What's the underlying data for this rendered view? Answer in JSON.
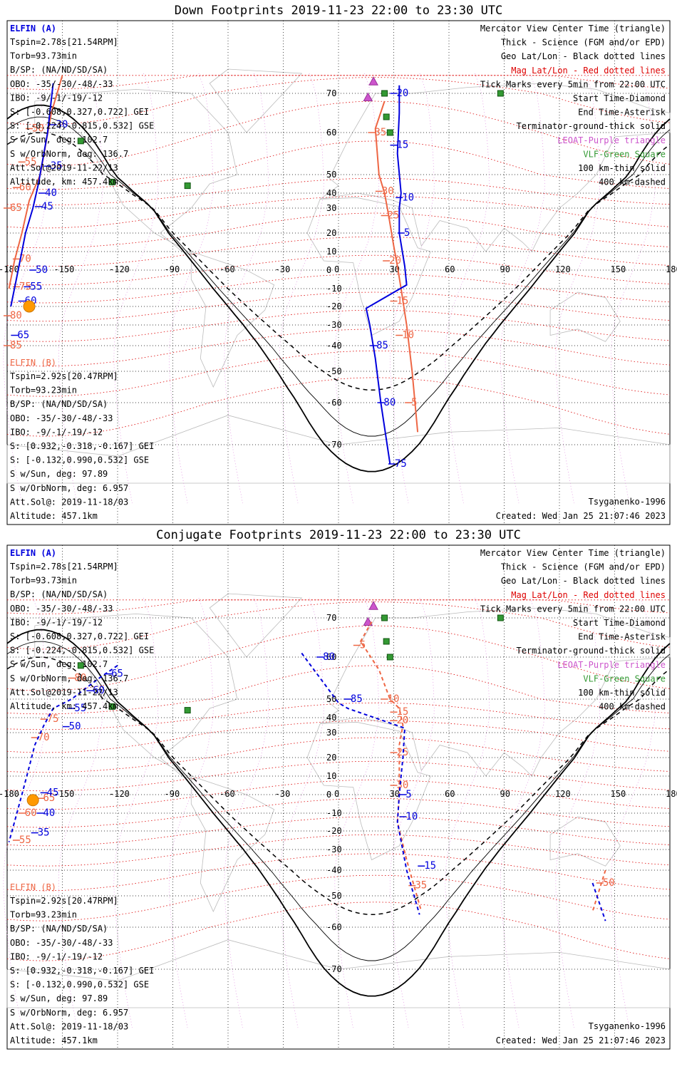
{
  "colors": {
    "elfin_a": "#0000dd",
    "elfin_b": "#ee6644",
    "geo_grid": "#000000",
    "mag_grid": "#dd0000",
    "terminator": "#000000",
    "poes": "#cc55cc",
    "vlf": "#339933",
    "sun": "#ff9900",
    "land": "#bbbbbb"
  },
  "panels": [
    {
      "title": "Down Footprints 2019-11-23 22:00 to 23:30 UTC",
      "legend": [
        "Mercator View Center Time (triangle)",
        "Thick - Science (FGM and/or EPD)",
        "Geo Lat/Lon - Black dotted lines",
        "Mag Lat/Lon - Red dotted lines",
        "Tick Marks every 5min from 22:00 UTC",
        "Start Time-Diamond",
        "End Time-Asterisk",
        "Terminator-ground-thick solid",
        "LEOAT-Purple triangle",
        "VLF-Green Square",
        "100 km-thin solid",
        "400 km-dashed"
      ],
      "elfin_a": {
        "name": "ELFIN (A)",
        "info": [
          "Tspin=2.78s[21.54RPM]",
          "Torb=93.73min",
          "B/SP: (NA/ND/SD/SA)",
          "OBO: -35/-30/-48/-33",
          "IBO: -9/-1/-19/-12",
          "S: [-0.608,0.327,0.722] GEI",
          "S: [-0.224,-0.815,0.532] GSE",
          "S w/Sun, deg: 102.7",
          "S w/OrbNorm, deg: 136.7",
          "Att.Sol@2019-11-22/13",
          "Altitude, km: 457.4km"
        ]
      },
      "elfin_b": {
        "name": "ELFIN (B)",
        "info": [
          "Tspin=2.92s[20.47RPM]",
          "Torb=93.23min",
          "B/SP: (NA/ND/SD/SA)",
          "OBO: -35/-30/-48/-33",
          "IBO: -9/-1/-19/-12",
          "S: [0.932,-0.318,-0.167] GEI",
          "S: [-0.132,0.990,0.532] GSE",
          "S w/Sun, deg: 97.89",
          "S w/OrbNorm, deg: 6.957",
          "Att.Sol@: 2019-11-18/03",
          "Altitude: 457.1km"
        ]
      },
      "model": "Tsyganenko-1996",
      "created": "Created: Wed Jan 25 21:07:46 2023"
    },
    {
      "title": "Conjugate Footprints 2019-11-23 22:00 to 23:30 UTC",
      "legend": [
        "Mercator View Center Time (triangle)",
        "Thick - Science (FGM and/or EPD)",
        "Geo Lat/Lon - Black dotted lines",
        "Mag Lat/Lon - Red dotted lines",
        "Tick Marks every 5min from 22:00 UTC",
        "Start Time-Diamond",
        "End Time-Asterisk",
        "Terminator-ground-thick solid",
        "LEOAT-Purple triangle",
        "VLF-Green Square",
        "100 km-thin solid",
        "400 km-dashed"
      ],
      "elfin_a": {
        "name": "ELFIN (A)",
        "info": [
          "Tspin=2.78s[21.54RPM]",
          "Torb=93.73min",
          "B/SP: (NA/ND/SD/SA)",
          "OBO: -35/-30/-48/-33",
          "IBO: -9/-1/-19/-12",
          "S: [-0.608,0.327,0.722] GEI",
          "S: [-0.224,-0.815,0.532] GSE",
          "S w/Sun, deg: 102.7",
          "S w/OrbNorm, deg: 136.7",
          "Att.Sol@2019-11-22/13",
          "Altitude, km: 457.4km"
        ]
      },
      "elfin_b": {
        "name": "ELFIN (B)",
        "info": [
          "Tspin=2.92s[20.47RPM]",
          "Torb=93.23min",
          "B/SP: (NA/ND/SD/SA)",
          "OBO: -35/-30/-48/-33",
          "IBO: -9/-1/-19/-12",
          "S: [0.932,-0.318,-0.167] GEI",
          "S: [-0.132,0.990,0.532] GSE",
          "S w/Sun, deg: 97.89",
          "S w/OrbNorm, deg: 6.957",
          "Att.Sol@: 2019-11-18/03",
          "Altitude: 457.1km"
        ]
      },
      "model": "Tsyganenko-1996",
      "created": "Created: Wed Jan 25 21:07:46 2023"
    }
  ],
  "map": {
    "lon_ticks": [
      "-180",
      "-150",
      "-120",
      "-90",
      "-60",
      "-30",
      "0",
      "30",
      "60",
      "90",
      "120",
      "150",
      "180"
    ],
    "lat_ticks": [
      "70",
      "60",
      "50",
      "40",
      "30",
      "20",
      "10",
      "0",
      "-10",
      "-20",
      "-30",
      "-40",
      "-50",
      "-60",
      "-70"
    ],
    "vlf_squares": [
      [
        -140,
        58
      ],
      [
        -123,
        46
      ],
      [
        -82,
        44
      ],
      [
        25,
        70
      ],
      [
        26,
        64
      ],
      [
        28,
        60
      ],
      [
        88,
        70
      ]
    ],
    "poes_triangles": [
      [
        19,
        76
      ],
      [
        16,
        69
      ]
    ]
  },
  "tracks": {
    "down": {
      "a": {
        "points": [
          [
            -155,
            75
          ],
          [
            -158,
            60
          ],
          [
            -163,
            45
          ],
          [
            -166,
            30
          ],
          [
            -170,
            20
          ],
          [
            -172,
            10
          ],
          [
            -175,
            -5
          ],
          [
            -178,
            -20
          ],
          [
            33,
            74
          ],
          [
            33,
            65
          ],
          [
            32,
            55
          ],
          [
            34,
            40
          ],
          [
            33,
            30
          ],
          [
            33,
            20
          ],
          [
            36,
            2
          ],
          [
            37,
            -8
          ],
          [
            15,
            -21
          ],
          [
            17,
            -30
          ],
          [
            20,
            -45
          ],
          [
            23,
            -60
          ],
          [
            28,
            -75
          ]
        ],
        "ticks": [
          [
            "30",
            -155,
            62
          ],
          [
            "35",
            -158,
            52
          ],
          [
            "40",
            -161,
            40
          ],
          [
            "45",
            -163,
            31
          ],
          [
            "50",
            -166,
            0
          ],
          [
            "55",
            -169,
            -9
          ],
          [
            "60",
            -172,
            -17
          ],
          [
            "65",
            -176,
            -35
          ],
          [
            "20",
            30,
            70
          ],
          [
            "15",
            30,
            57
          ],
          [
            "10",
            33,
            37
          ],
          [
            "5",
            34,
            20
          ],
          [
            "85",
            19,
            -40
          ],
          [
            "80",
            23,
            -60
          ],
          [
            "75",
            29,
            -75
          ]
        ]
      },
      "b": {
        "points": [
          [
            -150,
            79
          ],
          [
            -156,
            65
          ],
          [
            -162,
            50
          ],
          [
            -168,
            35
          ],
          [
            -172,
            20
          ],
          [
            -176,
            5
          ],
          [
            -179,
            -10
          ],
          [
            25,
            68
          ],
          [
            20,
            61
          ],
          [
            22,
            50
          ],
          [
            25,
            40
          ],
          [
            27,
            28
          ],
          [
            30,
            13
          ],
          [
            32,
            2
          ],
          [
            34,
            -10
          ],
          [
            37,
            -30
          ],
          [
            40,
            -50
          ],
          [
            43,
            -67
          ]
        ],
        "ticks": [
          [
            "35",
            18,
            60
          ],
          [
            "30",
            22,
            41
          ],
          [
            "25",
            25,
            27
          ],
          [
            "20",
            26,
            5
          ],
          [
            "15",
            30,
            -17
          ],
          [
            "10",
            33,
            -35
          ],
          [
            "5",
            38,
            -60
          ],
          [
            "50",
            -168,
            61
          ],
          [
            "55",
            -172,
            53
          ],
          [
            "60",
            -175,
            43
          ],
          [
            "65",
            -180,
            30
          ],
          [
            "70",
            -175,
            6
          ],
          [
            "75",
            -175,
            -9
          ],
          [
            "80",
            -180,
            -25
          ],
          [
            "85",
            -180,
            -40
          ]
        ]
      }
    },
    "conj": {
      "a": {
        "points": [
          [
            -120,
            58
          ],
          [
            -130,
            55
          ],
          [
            -145,
            50
          ],
          [
            -155,
            45
          ],
          [
            -160,
            35
          ],
          [
            -165,
            25
          ],
          [
            -168,
            15
          ],
          [
            -172,
            0
          ],
          [
            -176,
            -15
          ],
          [
            -179,
            -26
          ],
          [
            -20,
            61
          ],
          [
            -10,
            55
          ],
          [
            0,
            48
          ],
          [
            5,
            45
          ],
          [
            36,
            33
          ],
          [
            35,
            20
          ],
          [
            34,
            10
          ],
          [
            33,
            0
          ],
          [
            32,
            -15
          ],
          [
            37,
            -40
          ],
          [
            44,
            -56
          ],
          [
            138,
            -45
          ],
          [
            145,
            -58
          ]
        ],
        "ticks": [
          [
            "65",
            -125,
            56
          ],
          [
            "60",
            -135,
            52
          ],
          [
            "55",
            -145,
            45
          ],
          [
            "50",
            -148,
            34
          ],
          [
            "45",
            -160,
            1
          ],
          [
            "40",
            -162,
            -10
          ],
          [
            "35",
            -165,
            -21
          ],
          [
            "80",
            -10,
            60
          ],
          [
            "85",
            5,
            50
          ],
          [
            "5",
            35,
            0
          ],
          [
            "10",
            35,
            -12
          ],
          [
            "15",
            45,
            -38
          ]
        ]
      },
      "b": {
        "points": [
          [
            18,
            69
          ],
          [
            12,
            64
          ],
          [
            22,
            57
          ],
          [
            28,
            50
          ],
          [
            33,
            45
          ],
          [
            35,
            35
          ],
          [
            33,
            25
          ],
          [
            33,
            10
          ],
          [
            33,
            0
          ],
          [
            32,
            -15
          ],
          [
            37,
            -35
          ],
          [
            45,
            -55
          ],
          [
            145,
            -40
          ],
          [
            138,
            -55
          ]
        ],
        "ticks": [
          [
            "5",
            10,
            63
          ],
          [
            "10",
            25,
            50
          ],
          [
            "15",
            30,
            43
          ],
          [
            "20",
            30,
            38
          ],
          [
            "25",
            30,
            22
          ],
          [
            "30",
            30,
            5
          ],
          [
            "35",
            40,
            -46
          ],
          [
            "50",
            142,
            -45
          ],
          [
            "70",
            -165,
            28
          ],
          [
            "75",
            -160,
            39
          ],
          [
            "80",
            -145,
            55
          ],
          [
            "65",
            -162,
            -2
          ],
          [
            "60",
            -172,
            -10
          ],
          [
            "55",
            -175,
            -25
          ]
        ]
      }
    }
  }
}
